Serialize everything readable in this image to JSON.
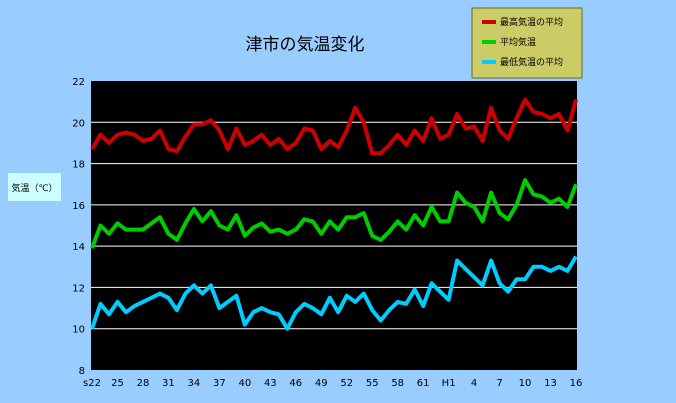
{
  "chart_data": {
    "type": "line",
    "title": "津市の気温変化",
    "xlabel": "",
    "ylabel": "気温（℃）",
    "ylim": [
      8,
      22
    ],
    "yticks": [
      8,
      10,
      12,
      14,
      16,
      18,
      20,
      22
    ],
    "grid": true,
    "legend_position": "top-right",
    "x_tick_labels": [
      "s22",
      "25",
      "28",
      "31",
      "34",
      "37",
      "40",
      "43",
      "46",
      "49",
      "52",
      "55",
      "58",
      "61",
      "H1",
      "4",
      "7",
      "10",
      "13",
      "16"
    ],
    "series": [
      {
        "name": "最高気温の平均",
        "color": "#cc0000",
        "values": [
          18.7,
          19.4,
          19.0,
          19.4,
          19.5,
          19.4,
          19.1,
          19.2,
          19.6,
          18.7,
          18.6,
          19.3,
          19.9,
          19.9,
          20.1,
          19.6,
          18.7,
          19.7,
          18.9,
          19.1,
          19.4,
          18.9,
          19.2,
          18.7,
          19.0,
          19.7,
          19.6,
          18.7,
          19.1,
          18.8,
          19.6,
          20.7,
          20.0,
          18.5,
          18.5,
          18.9,
          19.4,
          18.9,
          19.6,
          19.1,
          20.2,
          19.2,
          19.4,
          20.4,
          19.7,
          19.8,
          19.1,
          20.7,
          19.6,
          19.2,
          20.2,
          21.1,
          20.5,
          20.4,
          20.2,
          20.4,
          19.6,
          21.1
        ]
      },
      {
        "name": "平均気温",
        "color": "#00cc00",
        "values": [
          13.9,
          15.0,
          14.6,
          15.1,
          14.8,
          14.8,
          14.8,
          15.1,
          15.4,
          14.6,
          14.3,
          15.1,
          15.8,
          15.2,
          15.7,
          15.0,
          14.8,
          15.5,
          14.5,
          14.9,
          15.1,
          14.7,
          14.8,
          14.6,
          14.8,
          15.3,
          15.2,
          14.6,
          15.2,
          14.8,
          15.4,
          15.4,
          15.6,
          14.5,
          14.3,
          14.7,
          15.2,
          14.8,
          15.5,
          15.0,
          15.9,
          15.2,
          15.2,
          16.6,
          16.1,
          15.9,
          15.2,
          16.6,
          15.6,
          15.3,
          16.0,
          17.2,
          16.5,
          16.4,
          16.1,
          16.3,
          15.9,
          17.0
        ]
      },
      {
        "name": "最低気温の平均",
        "color": "#00ccff",
        "values": [
          10.0,
          11.2,
          10.7,
          11.3,
          10.8,
          11.1,
          11.3,
          11.5,
          11.7,
          11.5,
          10.9,
          11.7,
          12.1,
          11.7,
          12.1,
          11.0,
          11.3,
          11.6,
          10.2,
          10.8,
          11.0,
          10.8,
          10.7,
          10.0,
          10.8,
          11.2,
          11.0,
          10.7,
          11.5,
          10.8,
          11.6,
          11.3,
          11.7,
          10.9,
          10.4,
          10.9,
          11.3,
          11.2,
          11.9,
          11.1,
          12.2,
          11.8,
          11.4,
          13.3,
          12.9,
          12.5,
          12.1,
          13.3,
          12.2,
          11.8,
          12.4,
          12.4,
          13.0,
          13.0,
          12.8,
          13.0,
          12.8,
          13.5
        ]
      }
    ]
  }
}
